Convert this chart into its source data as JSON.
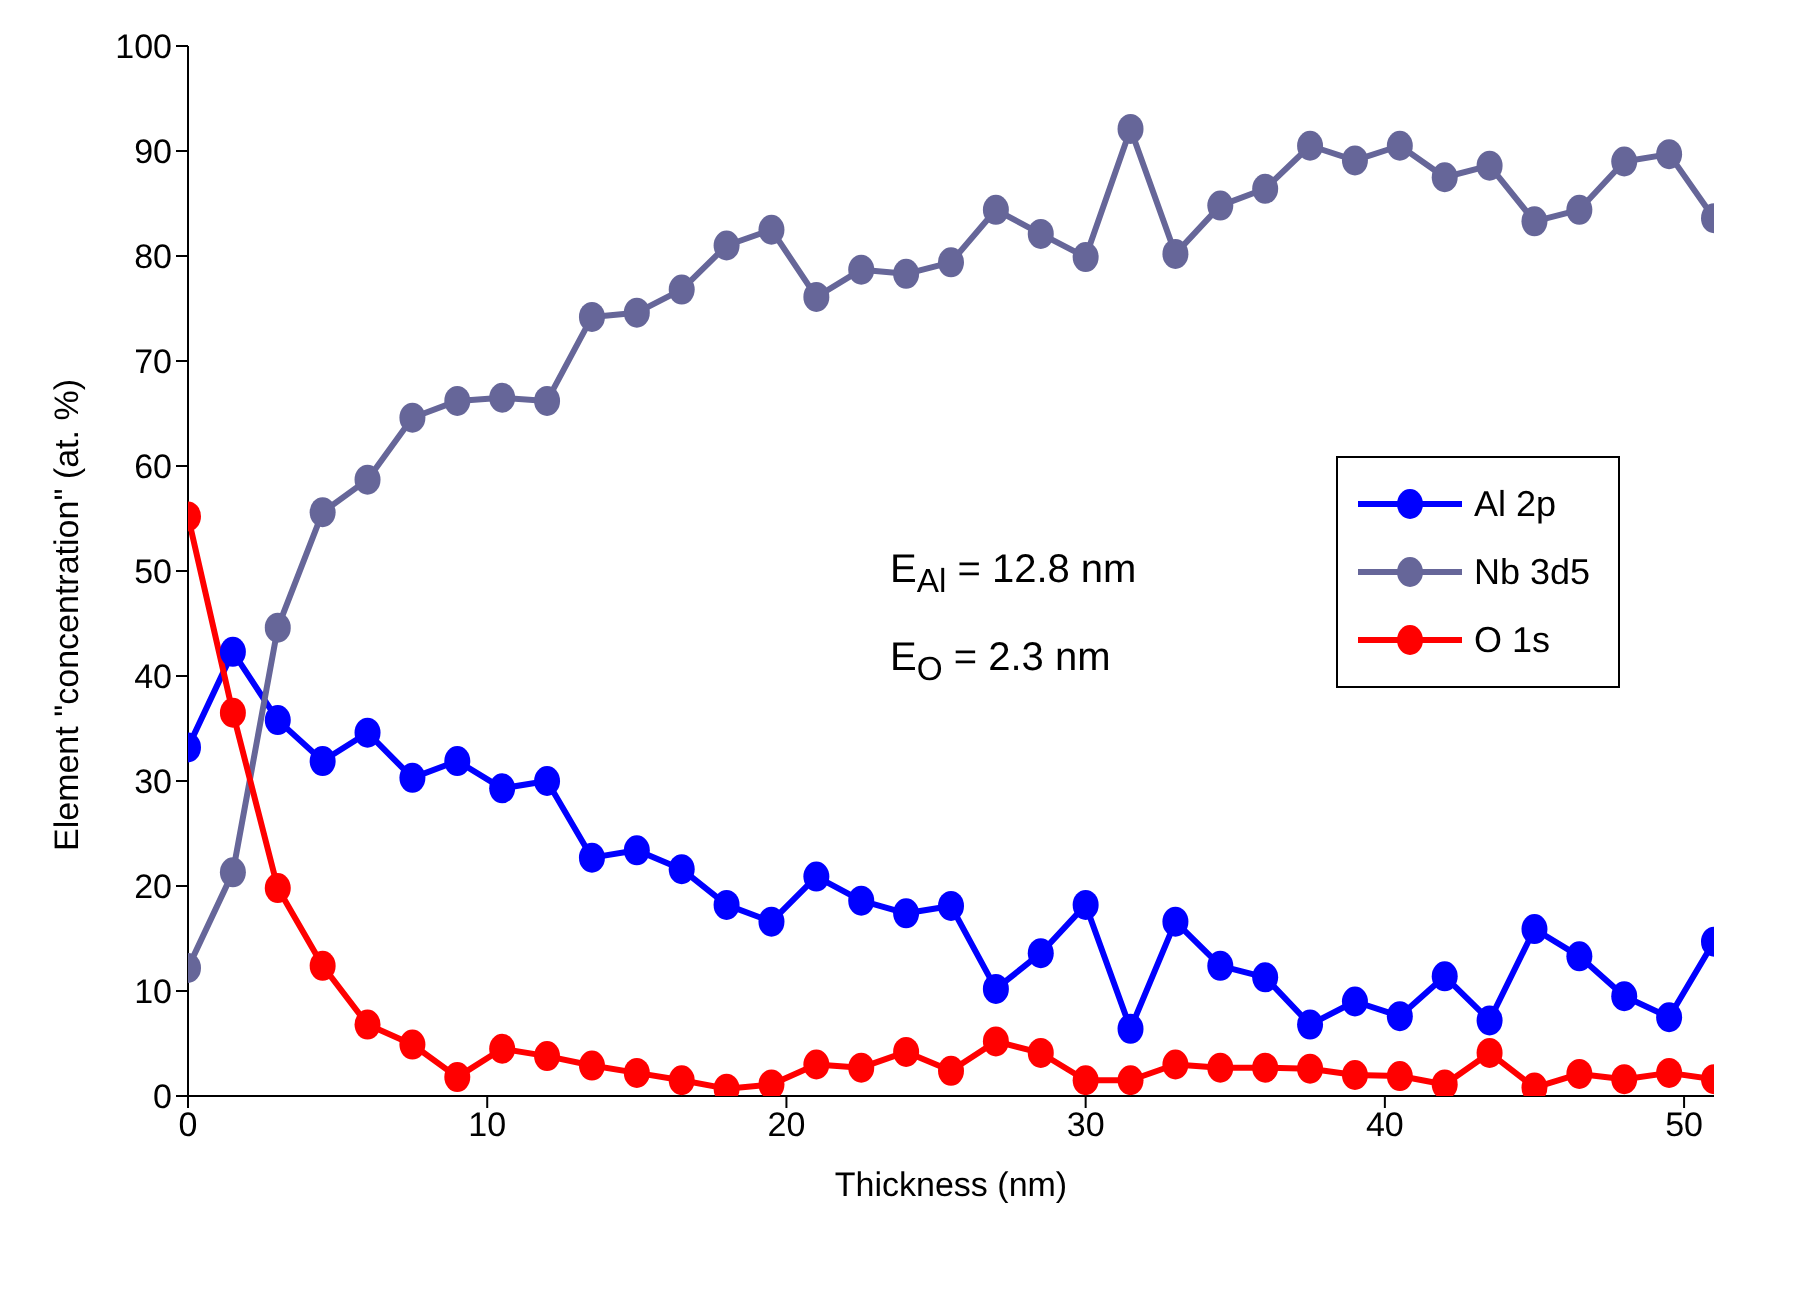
{
  "chart_data": {
    "type": "line",
    "xlabel": "Thickness (nm)",
    "ylabel": "Element \"concentration\" (at. %)",
    "x": [
      0,
      1.5,
      3,
      4.5,
      6,
      7.5,
      9,
      10.5,
      12,
      13.5,
      15,
      16.5,
      18,
      19.5,
      21,
      22.5,
      24,
      25.5,
      27,
      28.5,
      30,
      31.5,
      33,
      34.5,
      36,
      37.5,
      39,
      40.5,
      42,
      43.5,
      45,
      46.5,
      48,
      49.5,
      51
    ],
    "series": [
      {
        "name": "Al 2p",
        "color": "#0000ff",
        "values": [
          33.2,
          42.3,
          35.8,
          31.9,
          34.6,
          30.3,
          31.9,
          29.3,
          30.0,
          22.7,
          23.4,
          21.6,
          18.2,
          16.6,
          20.9,
          18.6,
          17.4,
          18.1,
          10.2,
          13.6,
          18.2,
          6.4,
          16.6,
          12.4,
          11.3,
          6.8,
          9.0,
          7.6,
          11.4,
          7.2,
          15.9,
          13.3,
          9.5,
          7.5,
          14.7
        ]
      },
      {
        "name": "Nb 3d5",
        "color": "#666699",
        "values": [
          12.2,
          21.3,
          44.6,
          55.6,
          58.7,
          64.6,
          66.2,
          66.5,
          66.2,
          74.2,
          74.6,
          76.8,
          81.0,
          82.5,
          76.1,
          78.7,
          78.3,
          79.4,
          84.4,
          82.1,
          79.9,
          92.1,
          80.2,
          84.8,
          86.4,
          90.5,
          89.1,
          90.5,
          87.5,
          88.6,
          83.3,
          84.4,
          89.0,
          89.7,
          83.6
        ]
      },
      {
        "name": "O 1s",
        "color": "#ff0000",
        "values": [
          55.2,
          36.5,
          19.8,
          12.4,
          6.8,
          4.9,
          1.8,
          4.5,
          3.8,
          2.9,
          2.2,
          1.5,
          0.7,
          1.1,
          3.0,
          2.7,
          4.2,
          2.4,
          5.2,
          4.1,
          1.5,
          1.5,
          3.0,
          2.7,
          2.7,
          2.6,
          2.0,
          1.9,
          1.1,
          4.1,
          0.8,
          2.1,
          1.6,
          2.2,
          1.6
        ]
      }
    ],
    "annotations": [
      "E$_{Al}$ = 12.8 nm",
      "E$_{O}$ = 2.3 nm"
    ],
    "xlim": [
      0,
      51
    ],
    "xticks": [
      0,
      10,
      20,
      30,
      40,
      50
    ],
    "ylim": [
      0,
      100
    ],
    "yticks": [
      0,
      10,
      20,
      30,
      40,
      50,
      60,
      70,
      80,
      90,
      100
    ],
    "grid": false,
    "legend": "right",
    "marker": "circle",
    "line_style": "solid"
  }
}
